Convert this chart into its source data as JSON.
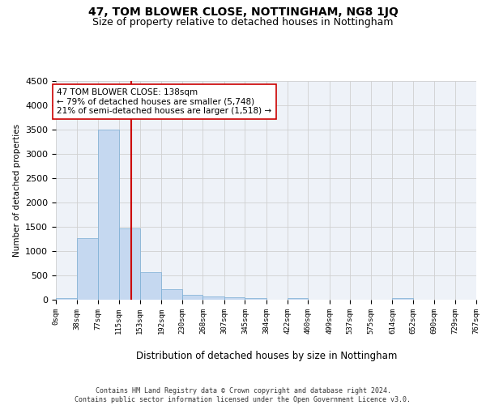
{
  "title": "47, TOM BLOWER CLOSE, NOTTINGHAM, NG8 1JQ",
  "subtitle": "Size of property relative to detached houses in Nottingham",
  "xlabel": "Distribution of detached houses by size in Nottingham",
  "ylabel": "Number of detached properties",
  "bin_edges": [
    0,
    38,
    77,
    115,
    153,
    192,
    230,
    268,
    307,
    345,
    384,
    422,
    460,
    499,
    537,
    575,
    614,
    652,
    690,
    729,
    767
  ],
  "bar_heights": [
    30,
    1270,
    3500,
    1470,
    575,
    220,
    105,
    75,
    50,
    30,
    0,
    40,
    0,
    0,
    0,
    0,
    30,
    0,
    0,
    0
  ],
  "bar_color": "#c5d8f0",
  "bar_edge_color": "#7aadd4",
  "grid_color": "#d0d0d0",
  "background_color": "#eef2f8",
  "property_value": 138,
  "vline_color": "#cc0000",
  "annotation_text": "47 TOM BLOWER CLOSE: 138sqm\n← 79% of detached houses are smaller (5,748)\n21% of semi-detached houses are larger (1,518) →",
  "annotation_box_color": "#ffffff",
  "annotation_box_edge_color": "#cc0000",
  "ylim": [
    0,
    4500
  ],
  "yticks": [
    0,
    500,
    1000,
    1500,
    2000,
    2500,
    3000,
    3500,
    4000,
    4500
  ],
  "footer_text": "Contains HM Land Registry data © Crown copyright and database right 2024.\nContains public sector information licensed under the Open Government Licence v3.0.",
  "title_fontsize": 10,
  "subtitle_fontsize": 9,
  "annotation_fontsize": 7.5,
  "tick_fontsize": 6.5,
  "ylabel_fontsize": 7.5,
  "xlabel_fontsize": 8.5,
  "tick_labels": [
    "0sqm",
    "38sqm",
    "77sqm",
    "115sqm",
    "153sqm",
    "192sqm",
    "230sqm",
    "268sqm",
    "307sqm",
    "345sqm",
    "384sqm",
    "422sqm",
    "460sqm",
    "499sqm",
    "537sqm",
    "575sqm",
    "614sqm",
    "652sqm",
    "690sqm",
    "729sqm",
    "767sqm"
  ]
}
